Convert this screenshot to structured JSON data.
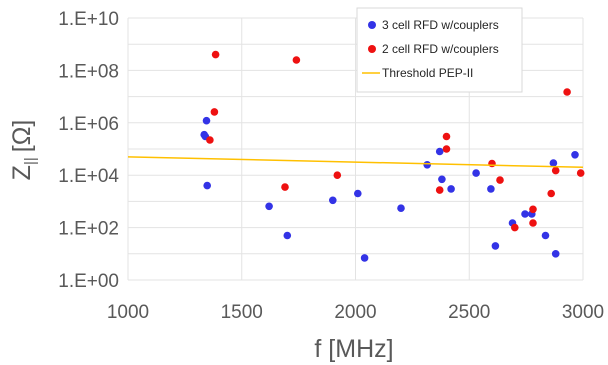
{
  "chart_data": {
    "type": "scatter",
    "xlabel": "f [MHz]",
    "ylabel": "Z",
    "ylabel_sub": "||",
    "ylabel_unit": "[Ω]",
    "xlim": [
      1000,
      3000
    ],
    "ylim_log10": [
      0,
      10
    ],
    "y_scale": "log",
    "grid": true,
    "legend_position": "top-right",
    "x_ticks": [
      1000,
      1500,
      2000,
      2500,
      3000
    ],
    "x_tick_labels": [
      "1000",
      "1500",
      "2000",
      "2500",
      "3000"
    ],
    "y_ticks": [
      1,
      100,
      10000,
      1000000,
      100000000,
      10000000000
    ],
    "y_tick_labels": [
      "1.E+00",
      "1.E+02",
      "1.E+04",
      "1.E+06",
      "1.E+08",
      "1.E+10"
    ],
    "series": [
      {
        "name": "3 cell RFD w/couplers",
        "color": "#3333e6",
        "marker": "circle",
        "points": [
          [
            1335,
            350000
          ],
          [
            1340,
            300000
          ],
          [
            1345,
            1200000
          ],
          [
            1348,
            4000
          ],
          [
            1620,
            650
          ],
          [
            1700,
            50
          ],
          [
            1900,
            1100
          ],
          [
            2010,
            2000
          ],
          [
            2040,
            7
          ],
          [
            2200,
            550
          ],
          [
            2315,
            25000
          ],
          [
            2370,
            80000
          ],
          [
            2380,
            7000
          ],
          [
            2420,
            3000
          ],
          [
            2530,
            12000
          ],
          [
            2595,
            3000
          ],
          [
            2615,
            20
          ],
          [
            2690,
            150
          ],
          [
            2745,
            330
          ],
          [
            2775,
            330
          ],
          [
            2835,
            50
          ],
          [
            2870,
            29000
          ],
          [
            2880,
            10
          ],
          [
            2965,
            60000
          ]
        ]
      },
      {
        "name": "2 cell RFD w/couplers",
        "color": "#ee1111",
        "marker": "circle",
        "points": [
          [
            1385,
            400000000
          ],
          [
            1740,
            250000000
          ],
          [
            1380,
            2600000
          ],
          [
            1360,
            220000
          ],
          [
            1690,
            3500
          ],
          [
            1920,
            10000
          ],
          [
            2370,
            2700
          ],
          [
            2400,
            300000
          ],
          [
            2400,
            100000
          ],
          [
            2600,
            28000
          ],
          [
            2635,
            6500
          ],
          [
            2700,
            100
          ],
          [
            2780,
            500
          ],
          [
            2780,
            150
          ],
          [
            2860,
            2000
          ],
          [
            2880,
            15000
          ],
          [
            2930,
            15000000
          ],
          [
            2990,
            12000
          ]
        ]
      },
      {
        "name": "Threshold PEP-II",
        "color": "#ffc000",
        "marker": "line",
        "points": [
          [
            1000,
            50000
          ],
          [
            3000,
            20000
          ]
        ]
      }
    ]
  }
}
